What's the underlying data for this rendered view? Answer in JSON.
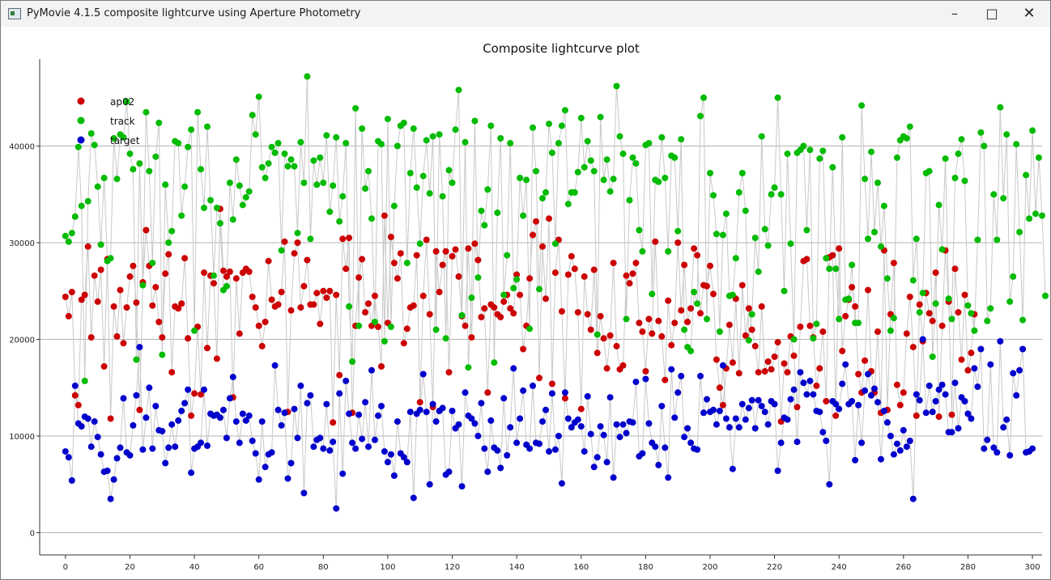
{
  "window": {
    "title": "PyMovie 4.1.5 composite lightcurve using Aperture Photometry",
    "minimize_icon": "minimize-icon",
    "maximize_icon": "maximize-icon",
    "close_icon": "close-icon"
  },
  "chart_data": {
    "type": "scatter",
    "title": "Composite lightcurve plot",
    "xlabel": "",
    "ylabel": "",
    "xlim": [
      -8,
      303
    ],
    "ylim": [
      -2300,
      49000
    ],
    "x_ticks": [
      0,
      20,
      40,
      60,
      80,
      100,
      120,
      140,
      160,
      180,
      200,
      220,
      240,
      260,
      280,
      300
    ],
    "y_ticks": [
      0,
      10000,
      20000,
      30000,
      40000
    ],
    "grid": "horizontal",
    "legend_placement": "top-left",
    "connect_points": true,
    "series": [
      {
        "name": "ap02",
        "color": "#cc0000",
        "x_start": 0,
        "values": [
          24400,
          22400,
          24900,
          14200,
          13200,
          24100,
          24600,
          29600,
          20200,
          26600,
          23900,
          27200,
          17200,
          28300,
          11800,
          23400,
          20300,
          25100,
          19600,
          23300,
          26500,
          27600,
          23800,
          12700,
          25900,
          31300,
          27600,
          23500,
          25400,
          21800,
          20200,
          26800,
          28800,
          16600,
          23400,
          23200,
          23700,
          28400,
          20100,
          12100,
          14400,
          21300,
          14300,
          26900,
          19100,
          26600,
          25800,
          18000,
          33500,
          27100,
          26500,
          27000,
          14000,
          26300,
          20600,
          26900,
          27300,
          27000,
          24400,
          23300,
          21400,
          19300,
          21800,
          28100,
          24100,
          23400,
          23600,
          24900,
          30100,
          12500,
          23000,
          28900,
          30000,
          23300,
          25500,
          28200,
          23600,
          23600,
          24800,
          21600,
          25000,
          24300,
          25000,
          11400,
          24600,
          16300,
          30400,
          27300,
          30500,
          12400,
          21400,
          26400,
          28300,
          22800,
          23700,
          21400,
          24500,
          21300,
          17200,
          32800,
          21700,
          30600,
          27900,
          26300,
          28900,
          19600,
          21100,
          23300,
          23500,
          28700,
          13500,
          24500,
          30300,
          22600,
          13000,
          29100,
          24900,
          27700,
          29100,
          16600,
          28600,
          29300,
          26500,
          22400,
          21400,
          29400,
          20200,
          29900,
          28200,
          22300,
          23200,
          14500,
          23600,
          23300,
          22600,
          22300,
          23900,
          24600,
          23200,
          22700,
          26700,
          24600,
          19000,
          21400,
          26300,
          30800,
          32200,
          16000,
          29600,
          24200,
          32500,
          15400,
          26900,
          30300,
          22900,
          13900,
          26700,
          28600,
          27300,
          22800,
          12800,
          26500,
          22600,
          21000,
          27200,
          18600,
          22400,
          20100,
          17000,
          20400,
          27900,
          19300,
          16900,
          17300,
          26600,
          25800,
          26800,
          27900,
          21700,
          20800,
          16700,
          22100,
          20600,
          30100,
          21900,
          20300,
          15800,
          24000,
          19400,
          21700,
          30000,
          23000,
          27700,
          21800,
          23200,
          29400,
          28700,
          22700,
          25600,
          25500,
          27600,
          24700,
          17900,
          15000,
          13200,
          17000,
          21500,
          17600,
          24200,
          16500,
          25600,
          20400,
          23200,
          21000,
          19300,
          16600,
          23400,
          16700,
          17700,
          16900,
          18200,
          19700,
          11500,
          17500,
          16600,
          20300,
          18300,
          13000,
          21300,
          28100,
          28300,
          21400,
          20200,
          15200,
          17000,
          20800,
          13600,
          28500,
          28700,
          12100,
          29400,
          18800,
          22400,
          24100,
          25400,
          23400,
          16400,
          14500,
          17800,
          25100,
          16700,
          14500,
          20800,
          12400,
          29200,
          12700,
          22600,
          27900,
          15300,
          13200,
          14500,
          20600,
          24400,
          19200,
          12100,
          23600,
          19800,
          24800,
          22700,
          21900,
          26900,
          12000,
          21400,
          29200,
          23900,
          12200,
          27300,
          22800,
          17900,
          24600,
          16800,
          18600,
          22600
        ],
        "x_override_note_removed": true
      },
      {
        "name": "track",
        "color": "#00bb00",
        "x_start": 0,
        "values": [
          30700,
          30100,
          31000,
          32700,
          39900,
          33800,
          15700,
          34300,
          41300,
          40100,
          35800,
          29800,
          36700,
          28100,
          28400,
          40800,
          36600,
          41200,
          40900,
          44600,
          39200,
          37600,
          17900,
          38200,
          25600,
          43500,
          37400,
          27900,
          38900,
          42400,
          18400,
          36000,
          30000,
          31200,
          40500,
          40300,
          32800,
          35800,
          39900,
          41700,
          20900,
          43500,
          37600,
          33600,
          42000,
          34400,
          26600,
          33600,
          32000,
          25100,
          25500,
          36200,
          32400,
          38600,
          35900,
          33900,
          34700,
          35300,
          43200,
          41200,
          45100,
          37800,
          36700,
          38200,
          39900,
          39300,
          40300,
          29200,
          39200,
          37900,
          38600,
          37900,
          31000,
          40400,
          36200,
          47200,
          30400,
          38500,
          36000,
          38800,
          36200,
          41100,
          33200,
          35900,
          40900,
          32200,
          34800,
          40300,
          23400,
          17700,
          43900,
          21400,
          41800,
          35600,
          37400,
          32500,
          21800,
          40500,
          40200,
          19800,
          42800,
          21300,
          33800,
          40000,
          42100,
          42400,
          27900,
          37200,
          41800,
          35700,
          29900,
          36900,
          40600,
          35100,
          41000,
          21000,
          41200,
          34800,
          20100,
          37500,
          36200,
          41700,
          45800,
          22500,
          40400,
          17100,
          24300,
          42600,
          26400,
          33300,
          31800,
          35500,
          42100,
          17600,
          33100,
          40800,
          24600,
          28700,
          40300,
          25300,
          26200,
          36700,
          32800,
          36500,
          21100,
          41900,
          37400,
          25200,
          34600,
          35200,
          42300,
          39300,
          29900,
          40300,
          42100,
          43700,
          34000,
          35200,
          35200,
          37300,
          42900,
          37800,
          40500,
          38500,
          37400,
          20500,
          43000,
          36500,
          38600,
          35300,
          36600,
          46200,
          41000,
          39200,
          22100,
          34400,
          38800,
          38200,
          31300,
          29100,
          40100,
          40300,
          24700,
          36500,
          36300,
          40900,
          36700,
          29100,
          39000,
          38800,
          31200,
          40700,
          21000,
          19200,
          18800,
          24900,
          23700,
          43100,
          45000,
          22100,
          37200,
          34900,
          30900,
          20800,
          30800,
          33000,
          24500,
          24600,
          28400,
          35200,
          37200,
          33300,
          19900,
          22600,
          30500,
          27000,
          41000,
          31400,
          29700,
          35000,
          35700,
          45000,
          35000,
          25000,
          39200,
          29900,
          20000,
          39300,
          39600,
          40000,
          31300,
          39600,
          20100,
          21600,
          38700,
          39500,
          28400,
          27300,
          37800,
          27300,
          22100,
          40900,
          24100,
          24200,
          27700,
          21700,
          21700,
          44200,
          36600,
          30400,
          39400,
          31100,
          36200,
          29600,
          33800,
          26300,
          20900,
          22200,
          38800,
          40600,
          41000,
          40800,
          42000,
          26100,
          30400,
          22800,
          24800,
          37200,
          37400,
          18200,
          23700,
          33900,
          29300,
          38700,
          24200,
          22100,
          36700,
          39200,
          40700,
          36400,
          23500,
          22700,
          20900,
          30300,
          41400,
          40000,
          21900,
          23200,
          35000,
          30300,
          44000,
          34600,
          41200,
          23900,
          26500,
          40200,
          31100,
          22000,
          37000,
          32500,
          41600,
          33000,
          38800,
          32800,
          24500
        ],
        "x_override_note_removed": true
      },
      {
        "name": "target",
        "color": "#0000cc",
        "x_start": 0,
        "values": [
          8400,
          7800,
          5400,
          15200,
          11300,
          11000,
          12000,
          11800,
          8900,
          11500,
          9900,
          8100,
          6300,
          6400,
          3500,
          5500,
          7700,
          8800,
          13900,
          8300,
          8000,
          11100,
          14200,
          19200,
          8600,
          11900,
          15000,
          8700,
          13100,
          10600,
          10500,
          7200,
          8800,
          11200,
          8900,
          11600,
          12600,
          13400,
          14800,
          6200,
          8700,
          8900,
          9300,
          14800,
          9000,
          12300,
          12100,
          12200,
          11900,
          12700,
          9800,
          13900,
          16100,
          11500,
          9300,
          12300,
          11600,
          12100,
          9500,
          8200,
          5500,
          11500,
          6800,
          8100,
          8300,
          17300,
          12700,
          11100,
          12400,
          5600,
          7200,
          12800,
          9800,
          15200,
          4100,
          13400,
          14200,
          8900,
          9600,
          9800,
          8700,
          13300,
          8500,
          9400,
          2500,
          14400,
          6100,
          15700,
          12300,
          9300,
          8700,
          12200,
          9700,
          13500,
          8900,
          16800,
          9600,
          12100,
          13100,
          8400,
          7300,
          8100,
          5900,
          11500,
          8200,
          7800,
          7300,
          12500,
          3600,
          12300,
          12700,
          16400,
          12500,
          5000,
          13300,
          11500,
          12600,
          12900,
          6000,
          6300,
          12600,
          10800,
          11200,
          4800,
          14500,
          12100,
          11800,
          11300,
          10000,
          13400,
          8700,
          6300,
          11600,
          8800,
          8500,
          6700,
          13900,
          8000,
          10900,
          17000,
          9300,
          11800,
          14700,
          9100,
          8700,
          15200,
          9300,
          9200,
          11500,
          12700,
          8400,
          14400,
          8600,
          10000,
          5100,
          14500,
          11800,
          10900,
          11400,
          11700,
          11000,
          8400,
          14100,
          10200,
          6800,
          7800,
          11000,
          10100,
          7300,
          14000,
          5700,
          11200,
          9900,
          11200,
          10300,
          11500,
          11400,
          15600,
          7900,
          8200,
          15900,
          11300,
          9300,
          8900,
          7000,
          13100,
          8800,
          5700,
          16900,
          11900,
          14500,
          16200,
          9900,
          10800,
          9300,
          8700,
          8600,
          16200,
          12400,
          13800,
          12500,
          12700,
          11200,
          12600,
          17300,
          11800,
          10900,
          6600,
          11800,
          10900,
          13300,
          11700,
          12900,
          13700,
          10800,
          13700,
          13100,
          12500,
          11200,
          13600,
          13300,
          6400,
          9300,
          11900,
          11700,
          13800,
          14800,
          9400,
          16600,
          15500,
          14300,
          15700,
          14300,
          12600,
          12500,
          10400,
          9500,
          5000,
          13600,
          13300,
          12800,
          15400,
          17400,
          13300,
          13600,
          7500,
          13200,
          9300,
          14700,
          16400,
          14200,
          14900,
          13500,
          7600,
          12600,
          11400,
          10000,
          8100,
          9200,
          8500,
          10600,
          8900,
          9500,
          3500,
          14300,
          13700,
          20000,
          12400,
          15200,
          12500,
          13600,
          14800,
          15300,
          14300,
          10400,
          10400,
          15500,
          10800,
          14000,
          13600,
          12300,
          11800,
          17000,
          15100,
          19000,
          8700,
          9600,
          17400,
          8800,
          8300,
          19800,
          10900,
          11700,
          8000,
          16500,
          14200,
          16800,
          19000,
          8300,
          8400,
          8700
        ],
        "x_override_note_removed": true
      }
    ]
  }
}
